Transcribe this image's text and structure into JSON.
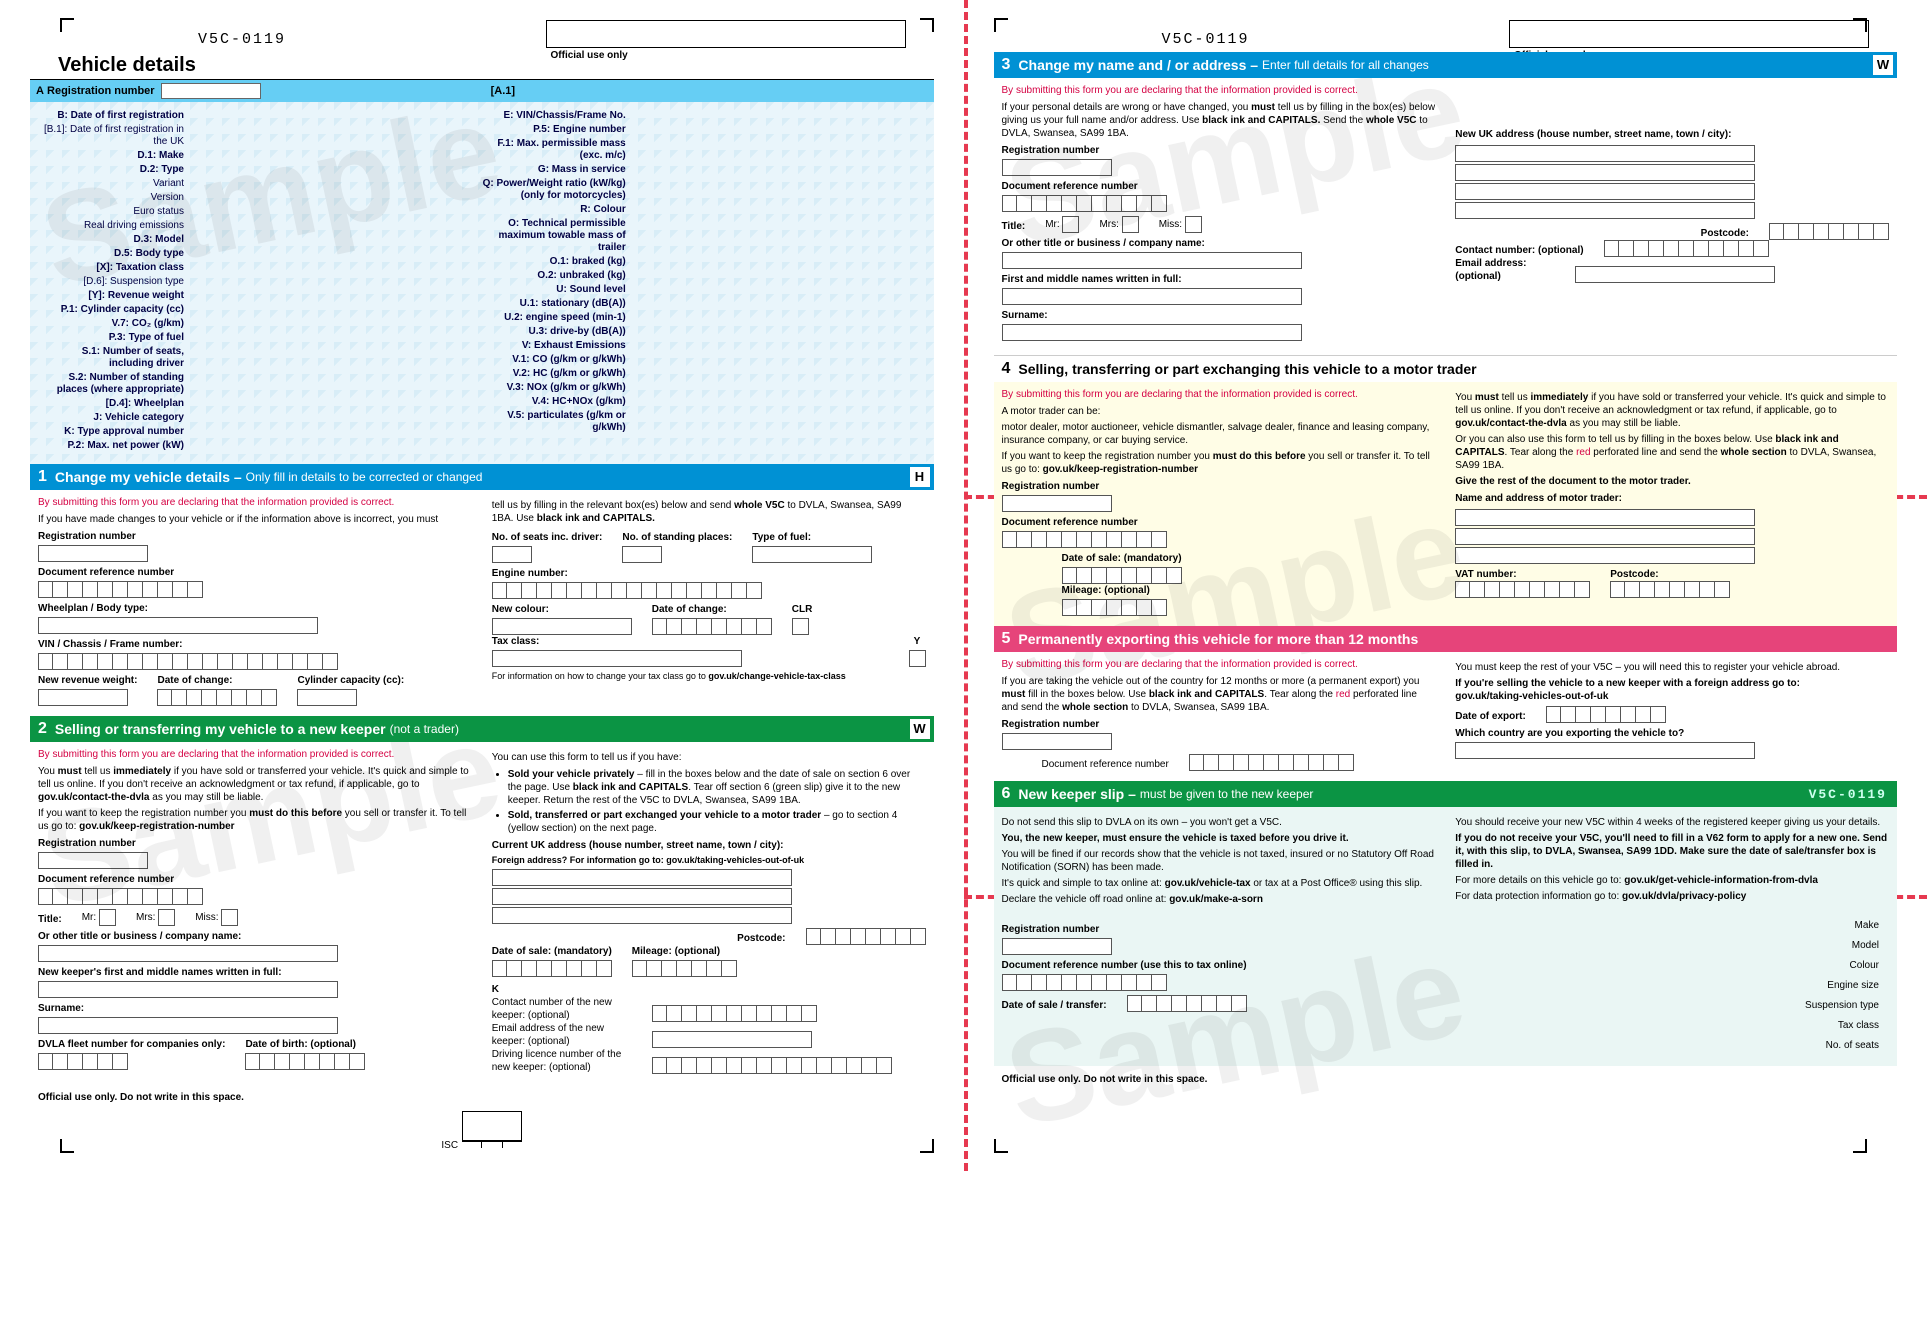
{
  "formCode": "V5C-0119",
  "officialUseOnly": "Official use only",
  "vehicleDetailsTitle": "Vehicle details",
  "regHeader": {
    "A": "A",
    "label": "Registration number",
    "a1": "[A.1]"
  },
  "vdLeft": [
    {
      "l": "B: Date of first registration",
      "b": true
    },
    {
      "l": "[B.1]: Date of first registration in the UK"
    },
    {
      "l": "D.1: Make",
      "b": true
    },
    {
      "l": "D.2: Type",
      "b": true
    },
    {
      "l": "Variant"
    },
    {
      "l": "Version"
    },
    {
      "l": "Euro status"
    },
    {
      "l": "Real driving emissions"
    },
    {
      "l": "D.3: Model",
      "b": true
    },
    {
      "l": "D.5: Body type",
      "b": true
    },
    {
      "l": "[X]: Taxation class",
      "b": true
    },
    {
      "l": "[D.6]: Suspension type"
    },
    {
      "l": "[Y]: Revenue weight",
      "b": true
    },
    {
      "l": "P.1: Cylinder capacity (cc)",
      "b": true
    },
    {
      "l": "V.7: CO₂ (g/km)",
      "b": true
    },
    {
      "l": "P.3: Type of fuel",
      "b": true
    },
    {
      "l": "S.1: Number of seats, including driver",
      "b": true
    },
    {
      "l": "S.2: Number of standing places (where appropriate)",
      "b": true
    },
    {
      "l": "[D.4]: Wheelplan",
      "b": true
    },
    {
      "l": "J: Vehicle category",
      "b": true
    },
    {
      "l": "K: Type approval number",
      "b": true
    },
    {
      "l": "P.2: Max. net power (kW)",
      "b": true
    }
  ],
  "vdRight": [
    {
      "l": "E: VIN/Chassis/Frame No.",
      "b": true
    },
    {
      "l": "P.5: Engine number",
      "b": true
    },
    {
      "l": "F.1: Max. permissible mass (exc. m/c)",
      "b": true
    },
    {
      "l": "G: Mass in service",
      "b": true
    },
    {
      "l": "Q: Power/Weight ratio (kW/kg) (only for motorcycles)",
      "b": true
    },
    {
      "l": "R: Colour",
      "b": true
    },
    {
      "l": "O: Technical permissible maximum towable mass of trailer",
      "b": true
    },
    {
      "l": "O.1: braked (kg)",
      "b": true
    },
    {
      "l": "O.2: unbraked (kg)",
      "b": true
    },
    {
      "l": "U: Sound level",
      "b": true
    },
    {
      "l": "U.1: stationary (dB(A))",
      "b": true
    },
    {
      "l": "U.2: engine speed (min-1)",
      "b": true
    },
    {
      "l": "U.3: drive-by (dB(A))",
      "b": true
    },
    {
      "l": "V: Exhaust Emissions",
      "b": true
    },
    {
      "l": "V.1: CO (g/km or g/kWh)",
      "b": true
    },
    {
      "l": "V.2: HC (g/km or g/kWh)",
      "b": true
    },
    {
      "l": "V.3: NOx (g/km or g/kWh)",
      "b": true
    },
    {
      "l": "V.4: HC+NOx (g/km)",
      "b": true
    },
    {
      "l": "V.5: particulates (g/km or g/kWh)",
      "b": true
    }
  ],
  "sec1": {
    "title": "Change my vehicle details –",
    "sub": "Only fill in details to be corrected or changed",
    "tab": "H",
    "decl": "By submitting this form you are declaring that the information provided is correct.",
    "p1": "If you have made changes to your vehicle or if the information above is incorrect, you must",
    "p2a": "tell us by filling in the relevant box(es) below and send ",
    "p2b": "whole V5C",
    "p2c": " to DVLA, Swansea, SA99 1BA. Use ",
    "p2d": "black ink and CAPITALS.",
    "f": {
      "reg": "Registration number",
      "dref": "Document reference number",
      "wheel": "Wheelplan / Body type:",
      "vin": "VIN / Chassis / Frame number:",
      "rev": "New revenue weight:",
      "doc": "Date of change:",
      "cyl": "Cylinder capacity (cc):",
      "seats": "No. of seats inc. driver:",
      "stand": "No. of standing places:",
      "fuel": "Type of fuel:",
      "eng": "Engine number:",
      "ncol": "New colour:",
      "docR": "Date of change:",
      "clr": "CLR",
      "tax": "Tax class:",
      "y": "Y",
      "taxinfo": "For information on how to change your tax class go to ",
      "taxurl": "gov.uk/change-vehicle-tax-class"
    }
  },
  "sec2": {
    "title": "Selling or transferring my vehicle to a new keeper",
    "sub": "(not a trader)",
    "tab": "W",
    "decl": "By submitting this form you are declaring that the information provided is correct.",
    "L1a": "You ",
    "L1b": "must",
    "L1c": " tell us ",
    "L1d": "immediately",
    "L1e": " if you have sold or transferred your vehicle. It's quick and simple to tell us online. If you don't receive an acknowledgment or tax refund, if applicable, go to ",
    "L1f": "gov.uk/contact-the-dvla",
    "L1g": " as you may still be liable.",
    "L2a": "If you want to keep the registration number you ",
    "L2b": "must do this before",
    "L2c": " you sell or transfer it. To tell us go to: ",
    "L2d": "gov.uk/keep-registration-number",
    "R1": "You can use this form to tell us if you have:",
    "R2a": "Sold your vehicle privately",
    "R2b": " – fill in the boxes below and the date of sale on section 6 over the page. Use ",
    "R2c": "black ink and CAPITALS",
    "R2d": ". Tear off section 6 (green slip) give it to the new keeper. Return the rest of the V5C to DVLA, Swansea, SA99 1BA.",
    "R3a": "Sold, transferred or part exchanged your vehicle to a motor trader",
    "R3b": " – go to section 4 (yellow section) on the next page.",
    "f": {
      "reg": "Registration number",
      "dref": "Document reference number",
      "title": "Title:",
      "mr": "Mr:",
      "mrs": "Mrs:",
      "miss": "Miss:",
      "other": "Or other title or business / company name:",
      "first": "New keeper's first and middle names written in full:",
      "surname": "Surname:",
      "fleet": "DVLA fleet number for companies only:",
      "dob": "Date of birth: (optional)",
      "addr": "Current UK address (house number, street name, town / city):",
      "foreign": "Foreign address? For information go to: ",
      "foreignurl": "gov.uk/taking-vehicles-out-of-uk",
      "postcode": "Postcode:",
      "dos": "Date of sale: (mandatory)",
      "mileage": "Mileage: (optional)",
      "K": "K",
      "contact": "Contact number of the new keeper: (optional)",
      "email": "Email address of the new keeper: (optional)",
      "licence": "Driving licence number of the new keeper: (optional)"
    }
  },
  "official": "Official use only. Do not write in this space.",
  "isc": "ISC",
  "sec3": {
    "title": "Change my name and / or address –",
    "sub": "Enter full details for all changes",
    "tab": "W",
    "decl": "By submitting this form you are declaring that the information provided is correct.",
    "p1a": "If your personal details are wrong or have changed, you ",
    "p1b": "must",
    "p1c": " tell us by filling in the box(es) below giving us your full name and/or address. Use ",
    "p1d": "black ink and CAPITALS.",
    "p1e": " Send the ",
    "p1f": "whole V5C",
    "p1g": " to DVLA, Swansea, SA99 1BA.",
    "f": {
      "reg": "Registration number",
      "dref": "Document reference number",
      "title": "Title:",
      "mr": "Mr:",
      "mrs": "Mrs:",
      "miss": "Miss:",
      "other": "Or other title or business / company name:",
      "first": "First and middle names written in full:",
      "surname": "Surname:",
      "addr": "New UK address (house number, street name, town / city):",
      "postcode": "Postcode:",
      "contact": "Contact number: (optional)",
      "email": "Email address: (optional)"
    }
  },
  "sec4": {
    "title": "Selling, transferring or part exchanging this vehicle to a motor trader",
    "decl": "By submitting this form you are declaring that the information provided is correct.",
    "L1": "A motor trader can be:",
    "L2": "motor dealer, motor auctioneer, vehicle dismantler, salvage dealer, finance and leasing company, insurance company, or car buying service.",
    "L3a": "If you want to keep the registration number you ",
    "L3b": "must do this before",
    "L3c": " you sell or transfer it. To tell us go to: ",
    "L3d": "gov.uk/keep-registration-number",
    "R1a": "You ",
    "R1b": "must",
    "R1c": " tell us ",
    "R1d": "immediately",
    "R1e": " if you have sold or transferred your vehicle. It's quick and simple to tell us online. If you don't receive an acknowledgment or tax refund, if applicable, go to ",
    "R1f": "gov.uk/contact-the-dvla",
    "R1g": " as you may still be liable.",
    "R2a": "Or you can also use this form to tell us by filling in the boxes below. Use ",
    "R2b": "black ink and CAPITALS",
    "R2c": ". Tear along the ",
    "R2d": "red",
    "R2e": " perforated line and send the ",
    "R2f": "whole section",
    "R2g": " to DVLA, Swansea, SA99 1BA.",
    "R3": "Give the rest of the document to the motor trader.",
    "f": {
      "reg": "Registration number",
      "dref": "Document reference number",
      "dos": "Date of sale: (mandatory)",
      "mileage": "Mileage: (optional)",
      "name": "Name and address of motor trader:",
      "vat": "VAT number:",
      "postcode": "Postcode:"
    }
  },
  "sec5": {
    "title": "Permanently exporting this vehicle for more than 12 months",
    "decl": "By submitting this form you are declaring that the information provided is correct.",
    "L1a": "If you are taking the vehicle out of the country for 12 months or more (a permanent export) you ",
    "L1b": "must",
    "L1c": " fill in the boxes below. Use ",
    "L1d": "black ink and CAPITALS",
    "L1e": ". Tear along the ",
    "L1f": "red",
    "L1g": " perforated line and send the ",
    "L1h": "whole section",
    "L1i": " to DVLA, Swansea, SA99 1BA.",
    "R1": "You must keep the rest of your V5C – you will need this to register your vehicle abroad.",
    "R2a": "If you're selling the vehicle to a new keeper with a foreign address go to:",
    "R2b": "gov.uk/taking-vehicles-out-of-uk",
    "f": {
      "reg": "Registration number",
      "dref": "Document reference number",
      "doe": "Date of export:",
      "country": "Which country are you exporting the vehicle to?"
    }
  },
  "sec6": {
    "title": "New keeper slip –",
    "sub": "must be given to the new keeper",
    "L1": "Do not send this slip to DVLA on its own – you won't get a V5C.",
    "L2": "You, the new keeper, must ensure the vehicle is taxed before you drive it.",
    "L3": "You will be fined if our records show that the vehicle is not taxed, insured or no Statutory Off Road Notification (SORN) has been made.",
    "L4a": "It's quick and simple to tax online at: ",
    "L4b": "gov.uk/vehicle-tax",
    "L4c": " or tax at a Post Office® using this slip.",
    "L5a": "Declare the vehicle off road online at: ",
    "L5b": "gov.uk/make-a-sorn",
    "R1": "You should receive your new V5C within 4 weeks of the registered keeper giving us your details.",
    "R2a": "If you do not receive your V5C, you'll need to fill in a V62 form to apply for a new one. Send it, with this slip, to DVLA, Swansea, SA99 1DD. Make sure the date of sale/transfer box is filled in.",
    "R3a": "For more details on this vehicle go to: ",
    "R3b": "gov.uk/get-vehicle-information-from-dvla",
    "R4a": "For data protection information go to: ",
    "R4b": "gov.uk/dvla/privacy-policy",
    "f": {
      "reg": "Registration number",
      "dref": "Document reference number (use this to tax online)",
      "dos": "Date of sale / transfer:"
    },
    "spec": [
      "Make",
      "Model",
      "Colour",
      "Engine size",
      "Suspension type",
      "Tax class",
      "No. of seats"
    ]
  },
  "colors": {
    "blue": "#0091d4",
    "lightblue": "#66cef4",
    "green": "#0b9444",
    "pink": "#e6447a",
    "yellow": "#fffde6",
    "teal": "#eaf6f4",
    "reddash": "#e63950",
    "decl": "#d40042"
  },
  "watermark": "Sample"
}
